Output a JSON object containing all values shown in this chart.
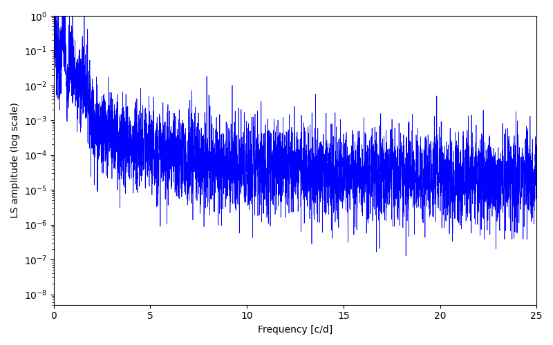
{
  "xlabel": "Frequency [c/d]",
  "ylabel": "LS amplitude (log scale)",
  "line_color": "#0000FF",
  "xlim": [
    0,
    25
  ],
  "ylim": [
    5e-09,
    1.0
  ],
  "n_points": 5000,
  "seed": 7,
  "figsize": [
    8.0,
    5.0
  ],
  "dpi": 100,
  "linewidth": 0.5
}
